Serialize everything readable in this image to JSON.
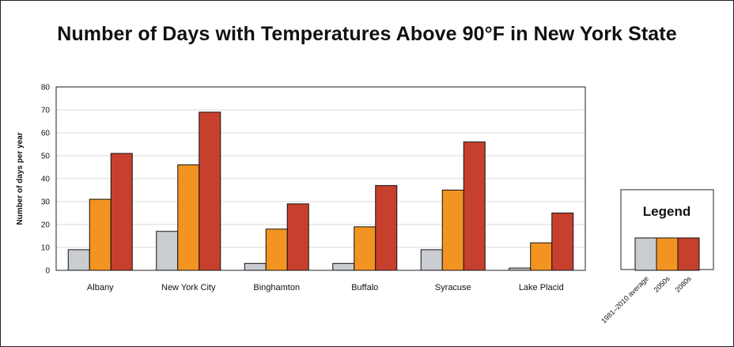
{
  "title": "Number of Days with Temperatures Above 90°F in New York State",
  "legend": {
    "title": "Legend"
  },
  "chart_data": {
    "type": "bar",
    "title": "Number of Days with Temperatures Above 90°F in New York State",
    "ylabel": "Number of days per year",
    "xlabel": "",
    "ylim": [
      0,
      80
    ],
    "yticks": [
      0,
      10,
      20,
      30,
      40,
      50,
      60,
      70,
      80
    ],
    "grid": true,
    "legend_position": "right",
    "categories": [
      "Albany",
      "New York City",
      "Binghamton",
      "Buffalo",
      "Syracuse",
      "Lake Placid"
    ],
    "series": [
      {
        "name": "1981–2010 average",
        "color": "#c9ccd0",
        "values": [
          9,
          17,
          3,
          3,
          9,
          1
        ]
      },
      {
        "name": "2050s",
        "color": "#f39321",
        "values": [
          31,
          46,
          18,
          19,
          35,
          12
        ]
      },
      {
        "name": "2080s",
        "color": "#c7402d",
        "values": [
          51,
          69,
          29,
          37,
          56,
          25
        ]
      }
    ]
  }
}
